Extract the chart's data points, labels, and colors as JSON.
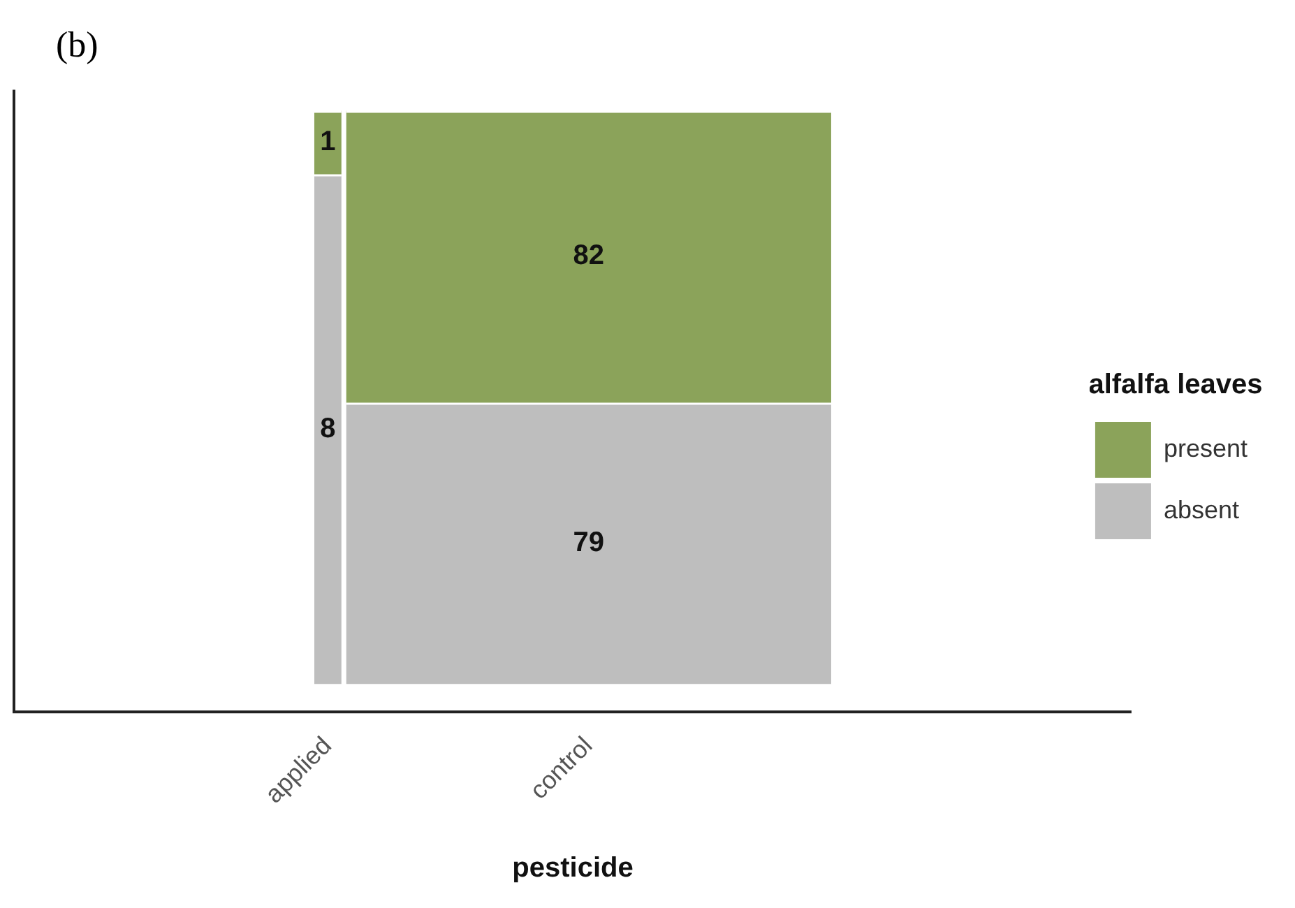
{
  "chart_data": {
    "type": "other",
    "title": "(b)",
    "xlabel": "pesticide",
    "legend_title": "alfalfa leaves",
    "legend": "right",
    "data_labels": true,
    "categories": [
      "applied",
      "control"
    ],
    "series": [
      {
        "name": "present",
        "color": "#8ba35a",
        "values": [
          1,
          82
        ]
      },
      {
        "name": "absent",
        "color": "#bebebe",
        "values": [
          8,
          79
        ]
      }
    ]
  }
}
